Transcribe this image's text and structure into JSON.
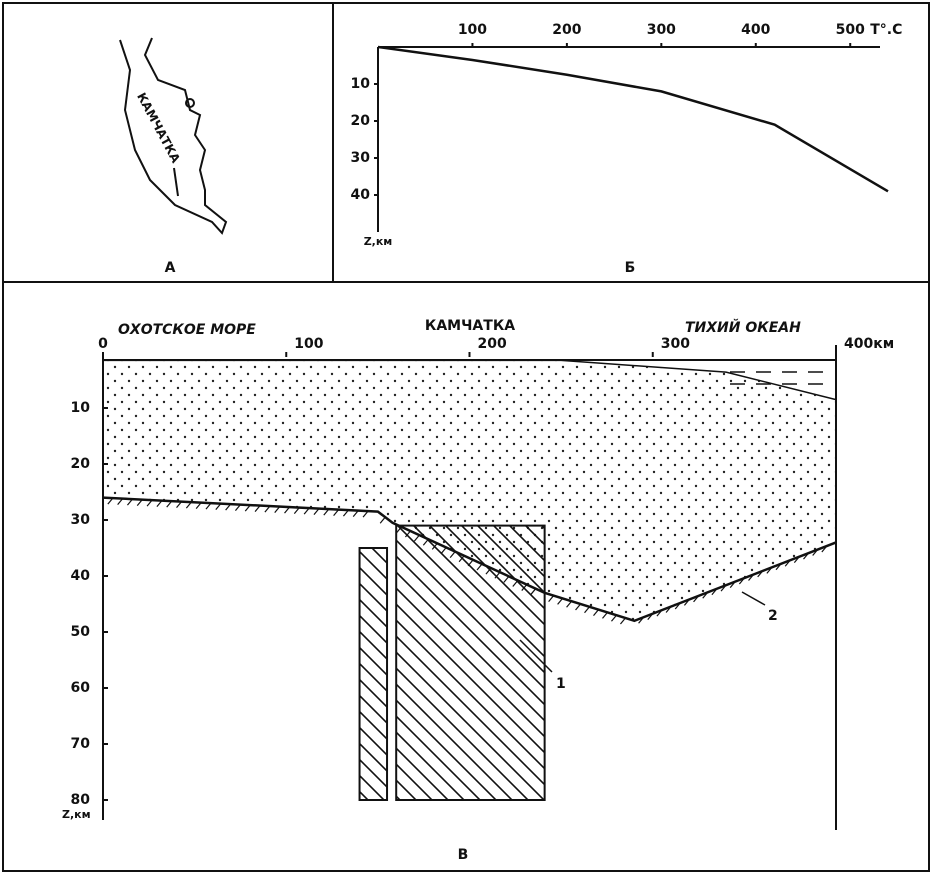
{
  "panel_a": {
    "map_label": "КАМЧАТКА",
    "caption": "А"
  },
  "panel_b": {
    "caption": "Б",
    "x_unit": "T°.C",
    "y_unit": "Z,км",
    "xlim": [
      0,
      540
    ],
    "xticks": [
      100,
      200,
      300,
      400,
      500
    ],
    "ylim": [
      0,
      50
    ],
    "yticks": [
      10,
      20,
      30,
      40
    ],
    "curve": {
      "x": [
        0,
        100,
        200,
        300,
        420,
        540
      ],
      "y": [
        0,
        3.5,
        7.5,
        12,
        21,
        39
      ]
    }
  },
  "panel_c": {
    "caption": "В",
    "labels": {
      "left": "ОХОТСКОЕ МОРЕ",
      "center": "КАМЧАТКА",
      "right": "ТИХИЙ ОКЕАН"
    },
    "xlim": [
      0,
      400
    ],
    "xticks": [
      0,
      100,
      200,
      300,
      {
        "value": 400,
        "label": "400км"
      }
    ],
    "ylim": [
      0,
      80
    ],
    "yticks": [
      10,
      20,
      30,
      40,
      50,
      60,
      70,
      80
    ],
    "y_unit": "Z,км",
    "crust_top": {
      "x": [
        0,
        250,
        340,
        400
      ],
      "y": [
        1.5,
        1.5,
        3.6,
        8.5
      ]
    },
    "moho": {
      "x": [
        0,
        150,
        158,
        241,
        290,
        400
      ],
      "y": [
        26,
        28.5,
        30.5,
        43,
        48,
        34
      ]
    },
    "blocks": [
      {
        "x": [
          140,
          155
        ],
        "y": [
          35,
          80
        ]
      },
      {
        "x": [
          160,
          241
        ],
        "y": [
          31,
          80
        ]
      }
    ],
    "callouts": [
      "1",
      "2"
    ]
  }
}
